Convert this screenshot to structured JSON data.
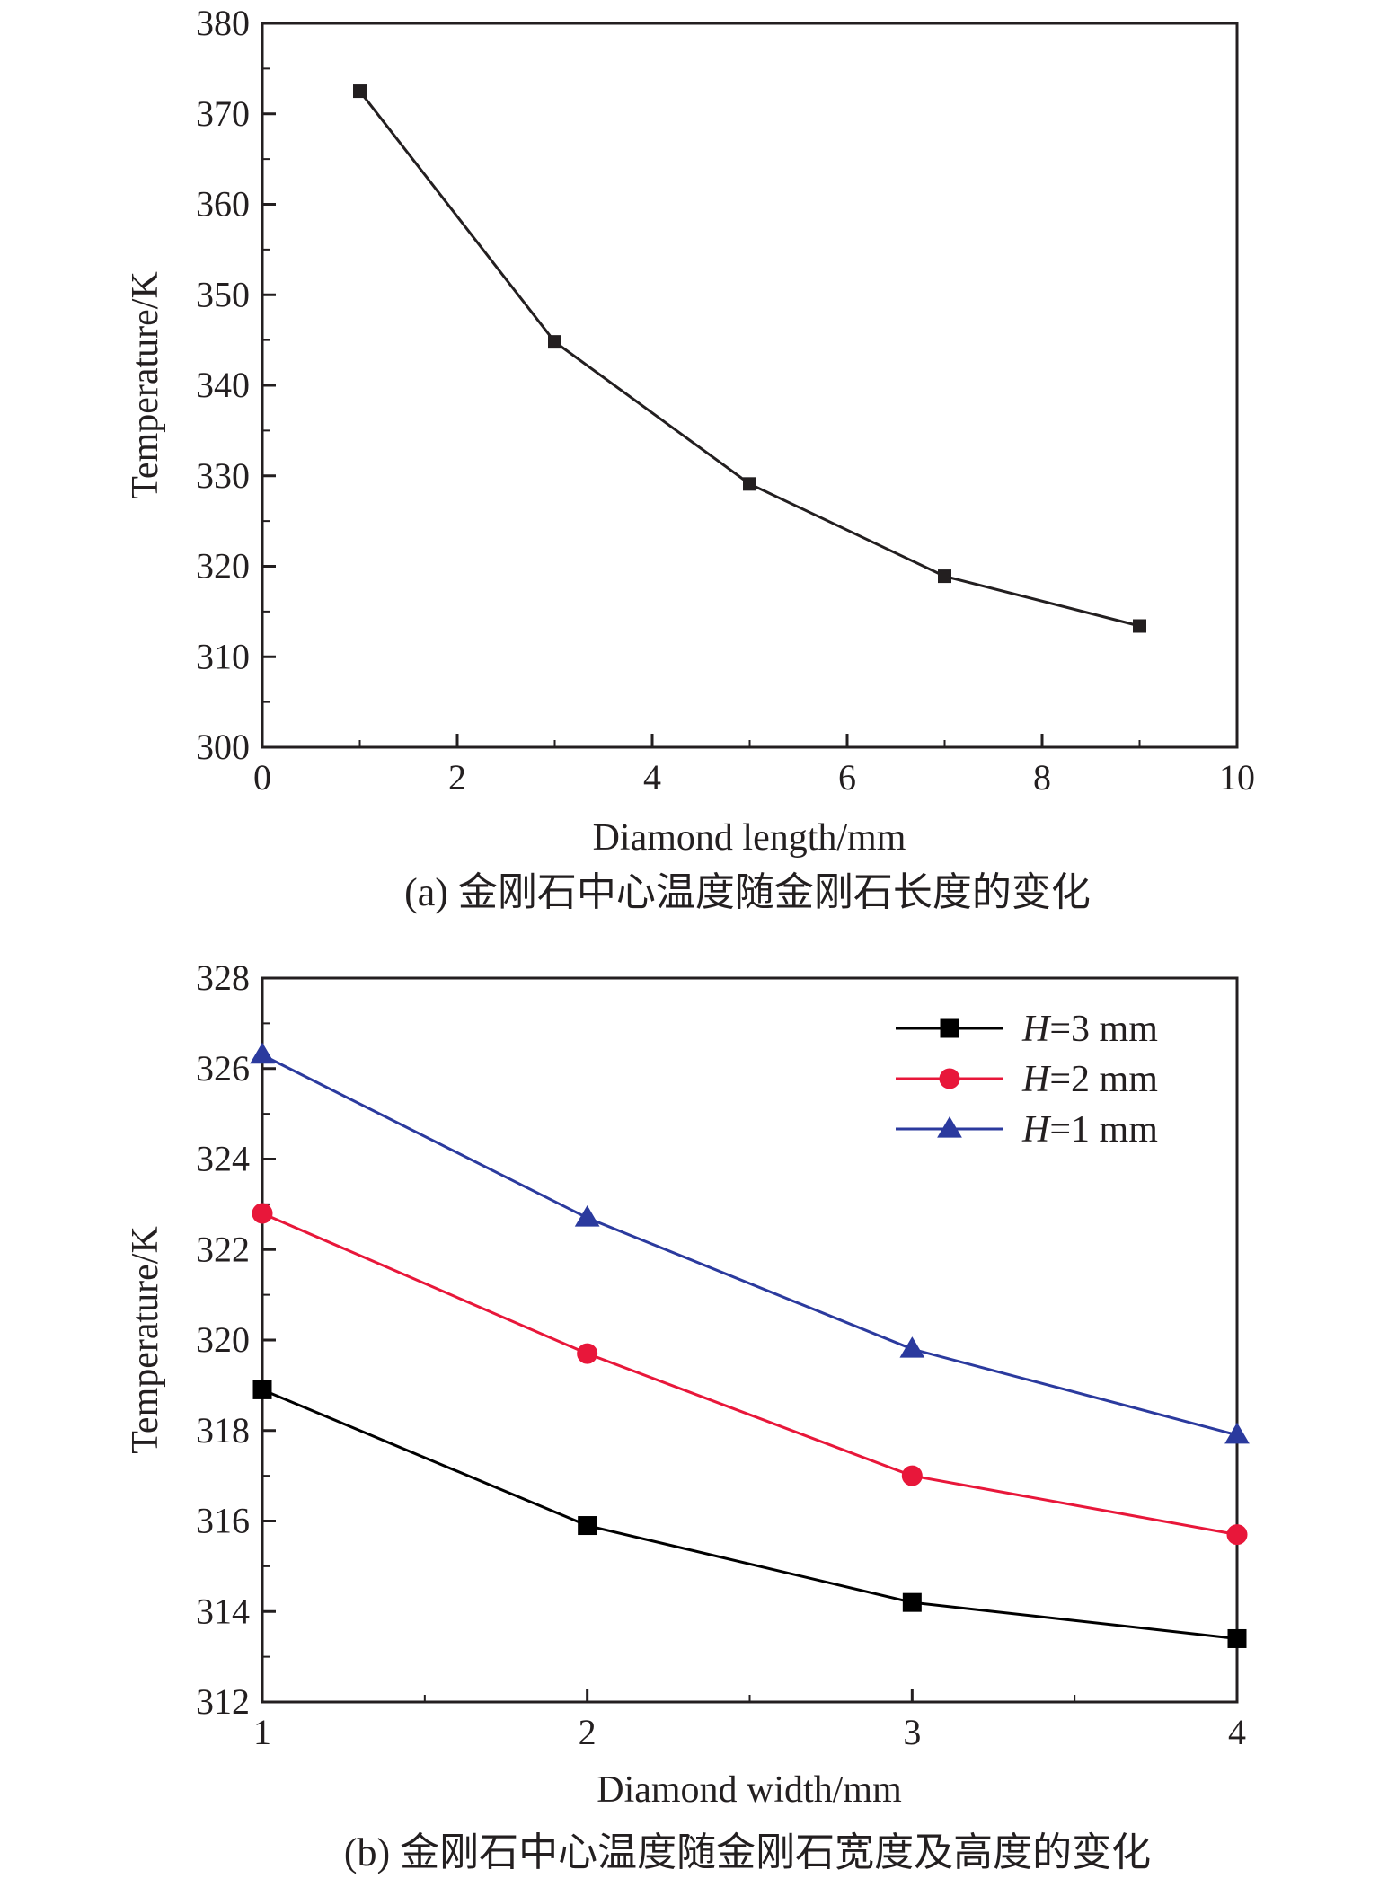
{
  "chart_data": [
    {
      "type": "line",
      "caption": "(a) 金刚石中心温度随金刚石长度的变化",
      "xlabel": "Diamond length/mm",
      "ylabel": "Temperature/K",
      "xlim": [
        0,
        10
      ],
      "ylim": [
        300,
        380
      ],
      "xticks": [
        0,
        2,
        4,
        6,
        8,
        10
      ],
      "yticks": [
        300,
        310,
        320,
        330,
        340,
        350,
        360,
        370,
        380
      ],
      "grid": false,
      "series": [
        {
          "x": [
            1,
            3,
            5,
            7,
            9
          ],
          "y": [
            372.5,
            344.8,
            329.1,
            318.9,
            313.4
          ],
          "color": "#231f20",
          "marker": "square"
        }
      ]
    },
    {
      "type": "line",
      "caption": "(b) 金刚石中心温度随金刚石宽度及高度的变化",
      "xlabel": "Diamond width/mm",
      "ylabel": "Temperature/K",
      "xlim": [
        1,
        4
      ],
      "ylim": [
        312,
        328
      ],
      "xticks": [
        1,
        2,
        3,
        4
      ],
      "yticks": [
        312,
        314,
        316,
        318,
        320,
        322,
        324,
        326,
        328
      ],
      "grid": false,
      "legend_position": "top-right",
      "series": [
        {
          "name": "H=3 mm",
          "name_italic": "H",
          "name_rest": "=3 mm",
          "x": [
            1,
            2,
            3,
            4
          ],
          "y": [
            318.9,
            315.9,
            314.2,
            313.4
          ],
          "color": "#000000",
          "marker": "square"
        },
        {
          "name": "H=2 mm",
          "name_italic": "H",
          "name_rest": "=2 mm",
          "x": [
            1,
            2,
            3,
            4
          ],
          "y": [
            322.8,
            319.7,
            317.0,
            315.7
          ],
          "color": "#e8173a",
          "marker": "circle"
        },
        {
          "name": "H=1 mm",
          "name_italic": "H",
          "name_rest": "=1 mm",
          "x": [
            1,
            2,
            3,
            4
          ],
          "y": [
            326.3,
            322.7,
            319.8,
            317.9
          ],
          "color": "#2b3a9e",
          "marker": "triangle"
        }
      ]
    }
  ]
}
